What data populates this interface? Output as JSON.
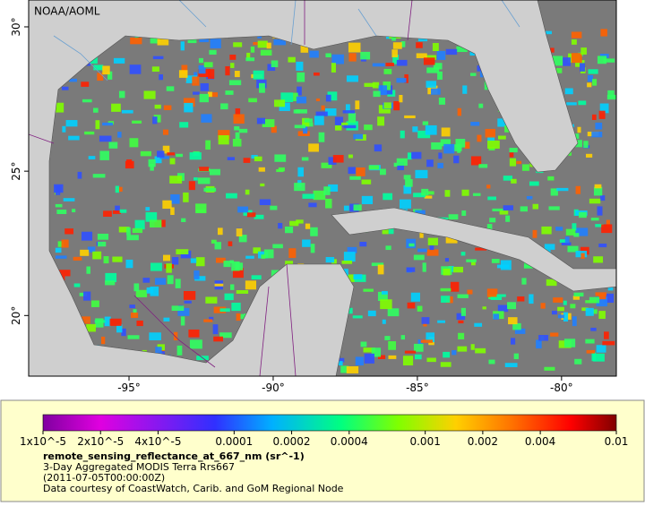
{
  "map": {
    "credit": "NOAA/AOML",
    "lat_range": [
      17.9,
      30.93
    ],
    "lon_range": [
      -98.48,
      -78.1
    ],
    "lat_ticks": [
      {
        "value": 30,
        "label": "30°"
      },
      {
        "value": 25,
        "label": "25°"
      },
      {
        "value": 20,
        "label": "20°"
      }
    ],
    "lon_ticks": [
      {
        "value": -95,
        "label": "-95°"
      },
      {
        "value": -90,
        "label": "-90°"
      },
      {
        "value": -85,
        "label": "-85°"
      },
      {
        "value": -80,
        "label": "-80°"
      }
    ]
  },
  "colorbar": {
    "scale": "log",
    "lim": [
      1e-05,
      0.01
    ],
    "ticks": [
      {
        "value": 1e-05,
        "label": "1x10^-5"
      },
      {
        "value": 2e-05,
        "label": "2x10^-5"
      },
      {
        "value": 4e-05,
        "label": "4x10^-5"
      },
      {
        "value": 0.0001,
        "label": "0.0001"
      },
      {
        "value": 0.0002,
        "label": "0.0002"
      },
      {
        "value": 0.0004,
        "label": "0.0004"
      },
      {
        "value": 0.001,
        "label": "0.001"
      },
      {
        "value": 0.002,
        "label": "0.002"
      },
      {
        "value": 0.004,
        "label": "0.004"
      },
      {
        "value": 0.01,
        "label": "0.01"
      }
    ]
  },
  "legend": {
    "variable": "remote_sensing_reflectance_at_667_nm (sr^-1)",
    "dataset": "3-Day Aggregated MODIS Terra Rrs667",
    "time": "(2011-07-05T00:00:00Z)",
    "source": "Data courtesy of CoastWatch, Carib. and GoM Regional Node"
  }
}
